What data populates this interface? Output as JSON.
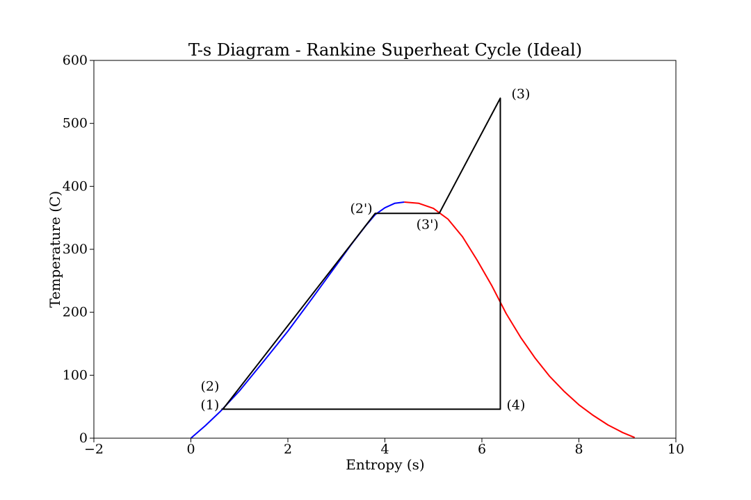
{
  "chart_data": {
    "type": "line",
    "title": "T-s Diagram - Rankine Superheat Cycle (Ideal)",
    "xlabel": "Entropy (s)",
    "ylabel": "Temperature (C)",
    "xlim": [
      -2,
      10
    ],
    "ylim": [
      0,
      600
    ],
    "xticks": [
      -2,
      0,
      2,
      4,
      6,
      8,
      10
    ],
    "yticks": [
      0,
      100,
      200,
      300,
      400,
      500,
      600
    ],
    "grid": false,
    "colors": {
      "saturated_liquid": "#0000ff",
      "saturated_vapor": "#ff0000",
      "cycle": "#000000"
    },
    "series": [
      {
        "color": "#0000ff",
        "x": [
          0.0,
          0.3,
          0.6,
          1.0,
          1.5,
          2.0,
          2.5,
          3.0,
          3.3,
          3.6,
          3.8,
          4.0,
          4.2,
          4.4
        ],
        "y": [
          0,
          20,
          42,
          75,
          122,
          170,
          222,
          275,
          307,
          337,
          355,
          366,
          373,
          375
        ]
      },
      {
        "color": "#ff0000",
        "x": [
          4.4,
          4.7,
          5.0,
          5.3,
          5.6,
          5.9,
          6.2,
          6.5,
          6.8,
          7.1,
          7.4,
          7.7,
          8.0,
          8.3,
          8.6,
          8.9,
          9.15
        ],
        "y": [
          375,
          373,
          365,
          348,
          320,
          283,
          243,
          198,
          160,
          127,
          98,
          74,
          53,
          36,
          21,
          9,
          1
        ]
      },
      {
        "color": "#000000",
        "x": [
          0.63,
          0.66,
          3.8,
          5.12,
          6.38,
          6.38,
          0.63
        ],
        "y": [
          46,
          46,
          357,
          357,
          540,
          46,
          46
        ]
      }
    ],
    "annotations": [
      {
        "text": "(1)",
        "x": 0.63,
        "y": 46
      },
      {
        "text": "(2)",
        "x": 0.66,
        "y": 46
      },
      {
        "text": "(2')",
        "x": 3.8,
        "y": 357
      },
      {
        "text": "(3')",
        "x": 5.12,
        "y": 357
      },
      {
        "text": "(3)",
        "x": 6.38,
        "y": 540
      },
      {
        "text": "(4)",
        "x": 6.38,
        "y": 46
      }
    ]
  }
}
